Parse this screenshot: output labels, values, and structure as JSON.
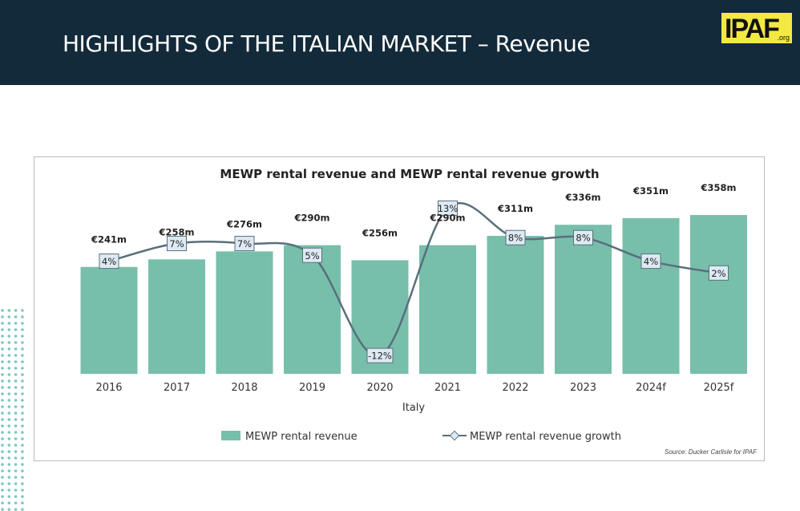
{
  "header": {
    "title": "HIGHLIGHTS OF THE ITALIAN MARKET – Revenue",
    "logo_text": "IPAF",
    "logo_suffix": ".org"
  },
  "source": "Source: Ducker Carlisle for IPAF",
  "colors": {
    "header_bg": "#132a3a",
    "bar": "#77bfab",
    "line": "#5a6f7c",
    "label_box": "#ddeaf3"
  },
  "chart_data": {
    "type": "bar+line",
    "title": "MEWP rental revenue and MEWP rental revenue growth",
    "xlabel": "Italy",
    "categories": [
      "2016",
      "2017",
      "2018",
      "2019",
      "2020",
      "2021",
      "2022",
      "2023",
      "2024f",
      "2025f"
    ],
    "series": [
      {
        "name": "MEWP rental revenue",
        "type": "bar",
        "values": [
          241,
          258,
          276,
          290,
          256,
          290,
          311,
          336,
          351,
          358
        ],
        "labels": [
          "€241m",
          "€258m",
          "€276m",
          "€290m",
          "€256m",
          "€290m",
          "€311m",
          "€336m",
          "€351m",
          "€358m"
        ]
      },
      {
        "name": "MEWP rental revenue growth",
        "type": "line",
        "values": [
          4,
          7,
          7,
          5,
          -12,
          13,
          8,
          8,
          4,
          2
        ],
        "labels": [
          "4%",
          "7%",
          "7%",
          "5%",
          "-12%",
          "13%",
          "8%",
          "8%",
          "4%",
          "2%"
        ]
      }
    ],
    "legend": "bottom"
  }
}
